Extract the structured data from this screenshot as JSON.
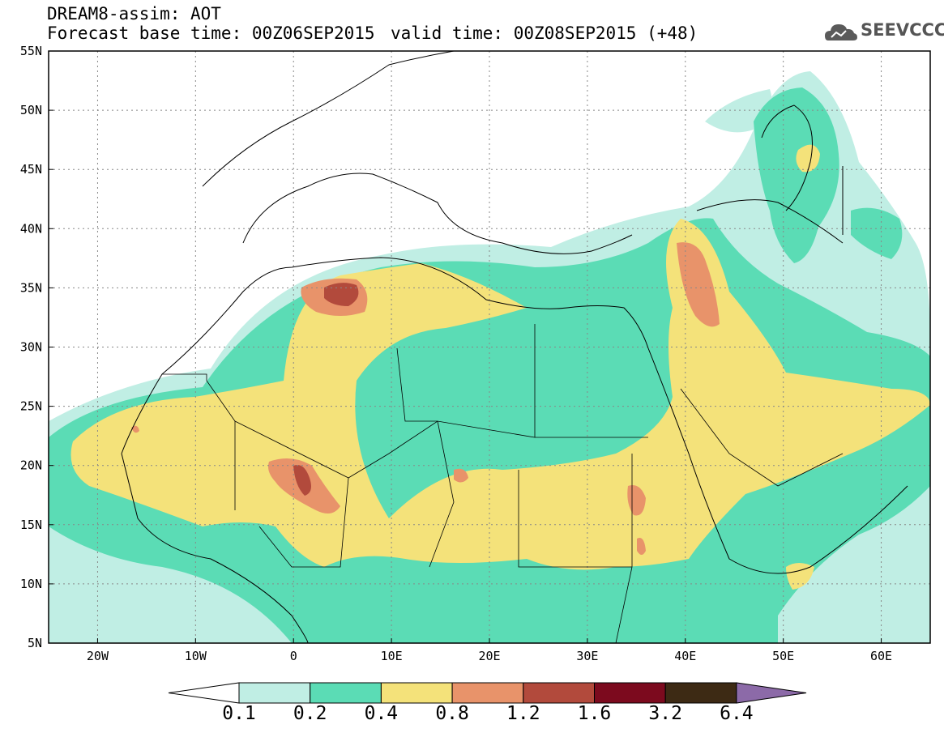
{
  "header": {
    "title_line1": "DREAM8-assim: AOT",
    "title_line2_left": "Forecast base time: 00Z06SEP2015",
    "title_line2_right": "valid time: 00Z08SEP2015 (+48)"
  },
  "logo": {
    "text": "SEEVCCC",
    "icon": "cloud-icon"
  },
  "map": {
    "lat_labels": [
      "55N",
      "50N",
      "45N",
      "40N",
      "35N",
      "30N",
      "25N",
      "20N",
      "15N",
      "10N",
      "5N"
    ],
    "lon_labels": [
      "20W",
      "10W",
      "0",
      "10E",
      "20E",
      "30E",
      "40E",
      "50E",
      "60E"
    ],
    "lat_range": [
      5,
      55
    ],
    "lon_range": [
      -25,
      65
    ],
    "grid": "dotted"
  },
  "colorbar": {
    "labels": [
      "0.1",
      "0.2",
      "0.4",
      "0.8",
      "1.2",
      "1.6",
      "3.2",
      "6.4"
    ],
    "colors": [
      "#c0eee4",
      "#5bdcb5",
      "#f4e27a",
      "#e8936a",
      "#b24a3c",
      "#7c0a1e",
      "#3d2a14",
      "#8c6aa8"
    ],
    "low_color": "#ffffff"
  }
}
